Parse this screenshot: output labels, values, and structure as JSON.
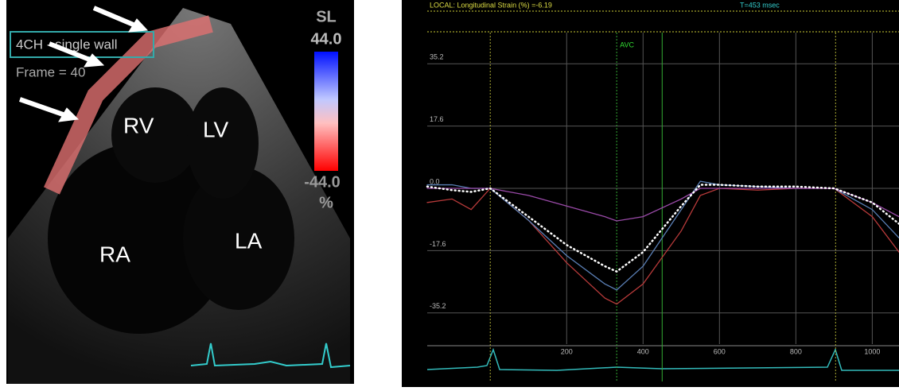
{
  "echo_panel": {
    "wall_label": "4CH - single wall",
    "frame_label": "Frame = 40",
    "scale_title": "SL",
    "scale_max": "44.0",
    "scale_min": "-44.0",
    "scale_unit": "%",
    "chambers": [
      "RV",
      "LV",
      "RA",
      "LA"
    ]
  },
  "chart_data": {
    "type": "line",
    "header": "LOCAL: Longitudinal Strain (%) =-6.19",
    "time_readout": "T=453 msec",
    "annotation": "AVC",
    "x": [
      -165,
      -100,
      -50,
      0,
      100,
      200,
      300,
      331,
      400,
      500,
      550,
      600,
      700,
      800,
      900,
      1000,
      1070
    ],
    "series": [
      {
        "color": "#b83a3a",
        "values": [
          -4,
          -3,
          -6,
          0,
          -9,
          -21,
          -31,
          -32.7,
          -27,
          -12,
          -2,
          0,
          -0.5,
          0,
          0,
          -8,
          -18
        ]
      },
      {
        "color": "#5a7fb5",
        "values": [
          1,
          1,
          0,
          0,
          -9,
          -19,
          -27,
          -28.7,
          -22,
          -6,
          2,
          1,
          0.5,
          0,
          0,
          -6,
          -14
        ]
      },
      {
        "color": "#9a4aa8",
        "values": [
          0,
          0,
          0,
          0,
          -2,
          -5,
          -8,
          -9.2,
          -8,
          -3,
          0,
          0,
          0,
          0,
          0,
          -4,
          -8
        ]
      },
      {
        "color": "#ffffff",
        "dotted": true,
        "values": [
          0.5,
          -0.5,
          -1,
          0,
          -8,
          -16,
          -22,
          -23.5,
          -18,
          -5,
          1,
          1,
          0.5,
          0.5,
          0,
          -4,
          -10
        ]
      }
    ],
    "xlim": [
      -165,
      1070
    ],
    "ylim": [
      -44,
      44
    ],
    "xticks": [
      200,
      400,
      600,
      800,
      1000
    ],
    "yticks": [
      35.2,
      17.6,
      {
        "value": 0,
        "label": "0.0"
      },
      -17.6,
      -35.2
    ],
    "grid": true
  }
}
